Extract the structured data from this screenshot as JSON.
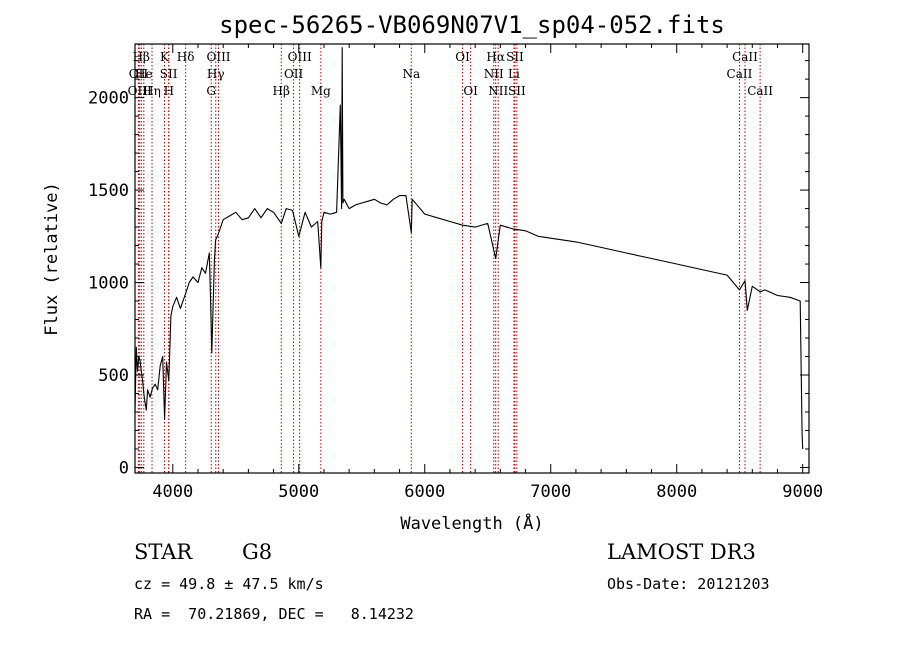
{
  "chart_data": {
    "type": "line",
    "title": "spec-56265-VB069N07V1_sp04-052.fits",
    "xlabel": "Wavelength (Å)",
    "ylabel": "Flux (relative)",
    "xlim": [
      3700,
      9050
    ],
    "ylim": [
      -30,
      2290
    ],
    "xticks": [
      4000,
      5000,
      6000,
      7000,
      8000,
      9000
    ],
    "yticks": [
      0,
      500,
      1000,
      1500,
      2000
    ],
    "grid": false,
    "series": [
      {
        "x": [
          3700,
          3710,
          3720,
          3730,
          3740,
          3750,
          3760,
          3770,
          3780,
          3790,
          3800,
          3820,
          3840,
          3860,
          3880,
          3900,
          3920,
          3935,
          3950,
          3968,
          3985,
          4000,
          4030,
          4060,
          4102,
          4130,
          4160,
          4200,
          4230,
          4260,
          4290,
          4300,
          4310,
          4330,
          4340,
          4360,
          4400,
          4450,
          4500,
          4550,
          4600,
          4650,
          4700,
          4750,
          4800,
          4861,
          4900,
          4950,
          5000,
          5050,
          5100,
          5150,
          5175,
          5183,
          5200,
          5250,
          5300,
          5330,
          5340,
          5345,
          5350,
          5360,
          5400,
          5450,
          5500,
          5550,
          5600,
          5650,
          5700,
          5750,
          5800,
          5850,
          5893,
          5900,
          5950,
          6000,
          6100,
          6200,
          6300,
          6400,
          6500,
          6563,
          6600,
          6700,
          6800,
          6900,
          7000,
          7200,
          7400,
          7600,
          7800,
          8000,
          8200,
          8400,
          8498,
          8542,
          8560,
          8600,
          8662,
          8700,
          8800,
          8900,
          8980,
          8995,
          9000
        ],
        "y": [
          300,
          650,
          520,
          600,
          580,
          520,
          470,
          400,
          350,
          310,
          420,
          380,
          430,
          450,
          420,
          550,
          600,
          260,
          570,
          470,
          820,
          870,
          920,
          860,
          940,
          1000,
          1030,
          1000,
          1080,
          1050,
          1160,
          900,
          620,
          1120,
          1230,
          1260,
          1340,
          1360,
          1380,
          1340,
          1350,
          1400,
          1350,
          1400,
          1380,
          1320,
          1400,
          1390,
          1250,
          1380,
          1300,
          1330,
          1080,
          1330,
          1380,
          1370,
          1380,
          1960,
          1400,
          2270,
          1430,
          1450,
          1400,
          1420,
          1430,
          1440,
          1450,
          1430,
          1420,
          1450,
          1470,
          1470,
          1270,
          1450,
          1410,
          1370,
          1350,
          1330,
          1310,
          1300,
          1320,
          1130,
          1310,
          1290,
          1280,
          1250,
          1240,
          1220,
          1190,
          1160,
          1130,
          1100,
          1070,
          1040,
          960,
          1010,
          850,
          980,
          950,
          960,
          930,
          920,
          900,
          180,
          100
        ]
      }
    ],
    "line_markers": [
      {
        "label": "Hβ",
        "row": 0,
        "x": 3750
      },
      {
        "label": "OII",
        "row": 1,
        "x": 3727
      },
      {
        "label": "OIII",
        "row": 2,
        "x": 3737
      },
      {
        "label": "He",
        "row": 1,
        "x": 3770
      },
      {
        "label": "Hη",
        "row": 2,
        "x": 3835
      },
      {
        "label": "K",
        "row": 0,
        "x": 3934
      },
      {
        "label": "SII",
        "row": 1,
        "x": 3967
      },
      {
        "label": "H",
        "row": 2,
        "x": 3969
      },
      {
        "label": "Hδ",
        "row": 0,
        "x": 4102
      },
      {
        "label": "OIII",
        "row": 0,
        "x": 4363
      },
      {
        "label": "Hγ",
        "row": 1,
        "x": 4341
      },
      {
        "label": "G",
        "row": 2,
        "x": 4305
      },
      {
        "label": "OIII",
        "row": 0,
        "x": 5007
      },
      {
        "label": "OII",
        "row": 1,
        "x": 4959
      },
      {
        "label": "Hβ",
        "row": 2,
        "x": 4861
      },
      {
        "label": "Mg",
        "row": 2,
        "x": 5175
      },
      {
        "label": "Na",
        "row": 1,
        "x": 5893
      },
      {
        "label": "OI",
        "row": 0,
        "x": 6300
      },
      {
        "label": "OI",
        "row": 2,
        "x": 6364
      },
      {
        "label": "Hα",
        "row": 0,
        "x": 6563
      },
      {
        "label": "SII",
        "row": 0,
        "x": 6716
      },
      {
        "label": "NII",
        "row": 1,
        "x": 6548
      },
      {
        "label": "Li",
        "row": 1,
        "x": 6708
      },
      {
        "label": "NII",
        "row": 2,
        "x": 6583
      },
      {
        "label": "SII",
        "row": 2,
        "x": 6731
      },
      {
        "label": "CaII",
        "row": 0,
        "x": 8542
      },
      {
        "label": "CaII",
        "row": 1,
        "x": 8498
      },
      {
        "label": "CaII",
        "row": 2,
        "x": 8662
      }
    ]
  },
  "info": {
    "class": "STAR",
    "subclass": "G8",
    "survey": "LAMOST DR3",
    "cz": "cz = 49.8 ± 47.5 km/s",
    "obs_date": "Obs-Date: 20121203",
    "coords": "RA =  70.21869, DEC =   8.14232"
  },
  "colors": {
    "spectrum": "#000000",
    "marker_lines": "#c00000",
    "axes": "#000000",
    "background": "#ffffff"
  }
}
